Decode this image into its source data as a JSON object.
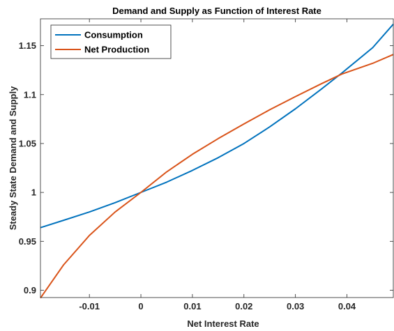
{
  "chart_data": {
    "type": "line",
    "title": "Demand and Supply as Function of Interest Rate",
    "xlabel": "Net Interest Rate",
    "ylabel": "Steady State Demand and Supply",
    "xlim": [
      -0.0195,
      0.049
    ],
    "ylim": [
      0.8925,
      1.1775
    ],
    "xticks": [
      -0.01,
      0,
      0.01,
      0.02,
      0.03,
      0.04
    ],
    "xtick_labels": [
      "-0.01",
      "0",
      "0.01",
      "0.02",
      "0.03",
      "0.04"
    ],
    "yticks": [
      0.9,
      0.95,
      1,
      1.05,
      1.1,
      1.15
    ],
    "ytick_labels": [
      "0.9",
      "0.95",
      "1",
      "1.05",
      "1.1",
      "1.15"
    ],
    "grid": false,
    "legend_position": "top-left",
    "x": [
      -0.0195,
      -0.015,
      -0.01,
      -0.005,
      0,
      0.005,
      0.01,
      0.015,
      0.02,
      0.025,
      0.03,
      0.035,
      0.039,
      0.045,
      0.049
    ],
    "series": [
      {
        "name": "Consumption",
        "color": "#0072BD",
        "values": [
          0.964,
          0.9715,
          0.98,
          0.9895,
          1.0,
          1.0105,
          1.0225,
          1.0355,
          1.05,
          1.067,
          1.0855,
          1.1055,
          1.122,
          1.148,
          1.172
        ]
      },
      {
        "name": "Net Production",
        "color": "#D95319",
        "values": [
          0.892,
          0.926,
          0.956,
          0.98,
          1.0,
          1.021,
          1.039,
          1.055,
          1.07,
          1.0845,
          1.098,
          1.111,
          1.121,
          1.132,
          1.141
        ]
      }
    ]
  }
}
